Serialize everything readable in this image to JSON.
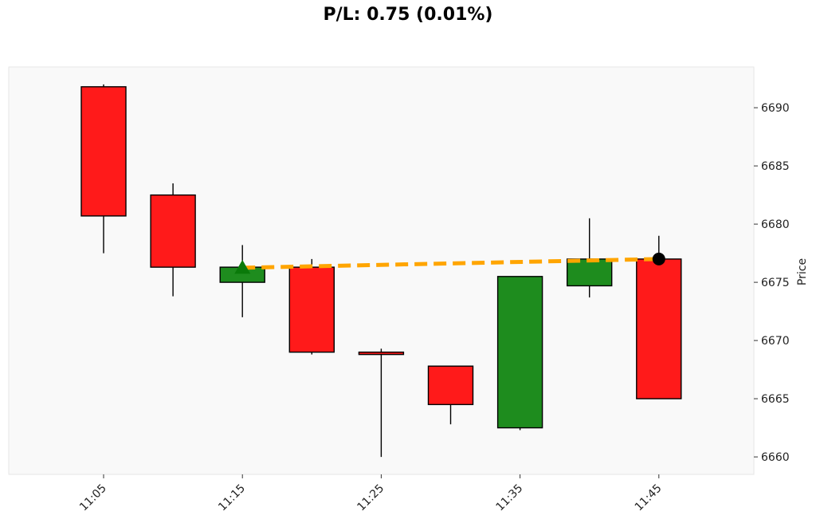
{
  "title": "P/L: 0.75 (0.01%)",
  "colors": {
    "up": "#1e8c1e",
    "down": "#ff1a1a",
    "trade_line": "#ffa500",
    "entry_marker": "#0a7a0a",
    "exit_marker": "#000000",
    "plot_bg": "#f9f9f9"
  },
  "chart_data": {
    "type": "candlestick",
    "ylabel": "Price",
    "ylim": [
      6658.5,
      6693.5
    ],
    "y_ticks": [
      6660,
      6665,
      6670,
      6675,
      6680,
      6685,
      6690
    ],
    "x_tick_labels": [
      "11:05",
      "11:15",
      "11:25",
      "11:35",
      "11:45"
    ],
    "x_tick_indices": [
      0,
      2,
      4,
      6,
      8
    ],
    "candles": [
      {
        "open": 6691.8,
        "high": 6692.0,
        "low": 6677.5,
        "close": 6680.7
      },
      {
        "open": 6682.5,
        "high": 6683.5,
        "low": 6673.8,
        "close": 6676.3
      },
      {
        "open": 6675.0,
        "high": 6678.2,
        "low": 6672.0,
        "close": 6676.3
      },
      {
        "open": 6676.3,
        "high": 6677.0,
        "low": 6668.8,
        "close": 6669.0
      },
      {
        "open": 6669.0,
        "high": 6669.3,
        "low": 6660.0,
        "close": 6668.8
      },
      {
        "open": 6667.8,
        "high": 6667.8,
        "low": 6662.8,
        "close": 6664.5
      },
      {
        "open": 6662.5,
        "high": 6675.5,
        "low": 6662.3,
        "close": 6675.5
      },
      {
        "open": 6674.7,
        "high": 6680.5,
        "low": 6673.7,
        "close": 6677.0
      },
      {
        "open": 6677.0,
        "high": 6679.0,
        "low": 6665.0,
        "close": 6665.0
      }
    ],
    "trade": {
      "entry": {
        "index": 2,
        "price": 6676.25
      },
      "exit": {
        "index": 8,
        "price": 6677.0
      }
    }
  }
}
